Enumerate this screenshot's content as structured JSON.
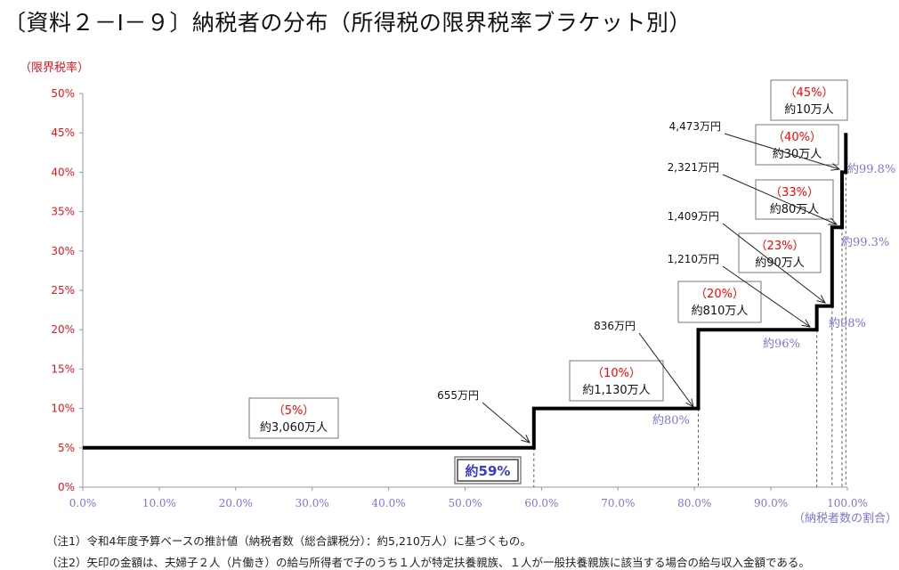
{
  "title": "〔資料２－Ⅰ－９〕納税者の分布（所得税の限界税率ブラケット別）",
  "chart_data": {
    "type": "line",
    "step": true,
    "ylabel": "（限界税率）",
    "xlabel": "（納税者数の割合）",
    "xlim": [
      0,
      100
    ],
    "ylim": [
      0,
      50
    ],
    "x_ticks": [
      "0.0%",
      "10.0%",
      "20.0%",
      "30.0%",
      "40.0%",
      "50.0%",
      "60.0%",
      "70.0%",
      "80.0%",
      "90.0%",
      "100.0%"
    ],
    "y_ticks": [
      "0%",
      "5%",
      "10%",
      "15%",
      "20%",
      "25%",
      "30%",
      "35%",
      "40%",
      "45%",
      "50%"
    ],
    "x_tick_values": [
      0,
      10,
      20,
      30,
      40,
      50,
      60,
      70,
      80,
      90,
      100
    ],
    "y_tick_values": [
      0,
      5,
      10,
      15,
      20,
      25,
      30,
      35,
      40,
      45,
      50
    ],
    "series": [
      {
        "name": "限界税率",
        "points": [
          [
            0,
            5
          ],
          [
            59,
            5
          ],
          [
            59,
            10
          ],
          [
            80.5,
            10
          ],
          [
            80.5,
            20
          ],
          [
            96,
            20
          ],
          [
            96,
            23
          ],
          [
            98,
            23
          ],
          [
            98,
            33
          ],
          [
            99.3,
            33
          ],
          [
            99.3,
            40
          ],
          [
            99.8,
            40
          ],
          [
            99.8,
            45
          ]
        ]
      }
    ],
    "brackets": [
      {
        "rate": "（5%）",
        "count": "約3,060万人"
      },
      {
        "rate": "（10%）",
        "count": "約1,130万人"
      },
      {
        "rate": "（20%）",
        "count": "約810万人"
      },
      {
        "rate": "（23%）",
        "count": "約90万人"
      },
      {
        "rate": "（33%）",
        "count": "約80万人"
      },
      {
        "rate": "（40%）",
        "count": "約30万人"
      },
      {
        "rate": "（45%）",
        "count": "約10万人"
      }
    ],
    "thresholds": [
      "655万円",
      "836万円",
      "1,210万円",
      "1,409万円",
      "2,321万円",
      "4,473万円"
    ],
    "cumulative_labels": [
      "約80%",
      "約96%",
      "約98%",
      "約99.3%",
      "約99.8%"
    ],
    "highlight_label": "約59%",
    "colors": {
      "axis_label": "#e8141a",
      "x_tick": "#7777dd",
      "rate": "#ff0000",
      "line": "#000000",
      "highlight": "#3a3acc"
    }
  },
  "notes": [
    "（注1）令和4年度予算ベースの推計値（納税者数（総合課税分）：約5,210万人）に基づくもの。",
    "（注2）矢印の金額は、夫婦子２人（片働き）の給与所得者で子のうち１人が特定扶養親族、１人が一般扶養親族に該当する場合の給与収入金額である。"
  ]
}
